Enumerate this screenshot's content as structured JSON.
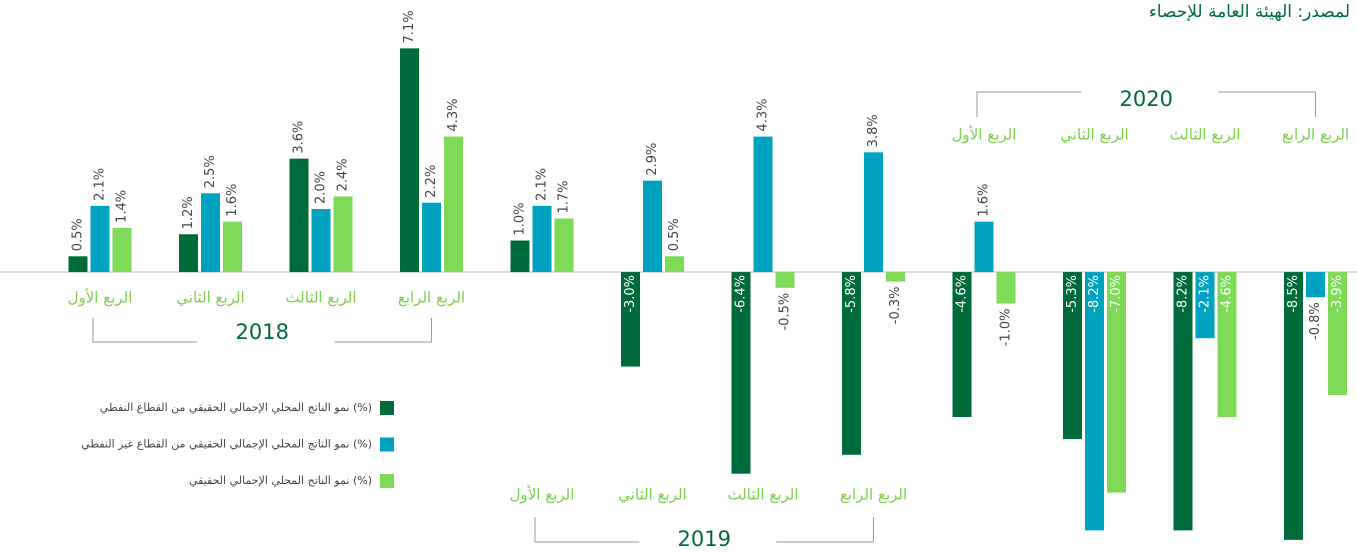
{
  "chart_data": {
    "type": "bar",
    "source": "لمصدر: الهيئة العامة للإحصاء",
    "categories": [
      "الربع الأول",
      "الربع الثاني",
      "الربع الثالث",
      "الربع الرابع",
      "الربع الأول",
      "الربع الثاني",
      "الربع الثالث",
      "الربع الرابع",
      "الربع الأول",
      "الربع الثاني",
      "الربع الثالث",
      "الربع الرابع"
    ],
    "years": [
      "2018",
      "2019",
      "2020"
    ],
    "ylim": [
      -8.6,
      8
    ],
    "series": [
      {
        "name": "نمو الناتج المحلي الإجمالي الحقيقي من القطاع النفطي (%)",
        "color": "#006b3a",
        "values": [
          0.5,
          1.2,
          3.6,
          7.1,
          1.0,
          -3.0,
          -6.4,
          -5.8,
          -4.6,
          -5.3,
          -8.2,
          -8.5
        ],
        "value_labels": [
          "0.5%",
          "1.2%",
          "3.6%",
          "7.1%",
          "1.0%",
          "-3.0%",
          "-6.4%",
          "-5.8%",
          "-4.6%",
          "-5.3%",
          "-8.2%",
          "-8.5%"
        ]
      },
      {
        "name": "نمو الناتج المحلي الإجمالي الحقيقي من القطاع غير النفطي (%)",
        "color": "#00a3bf",
        "values": [
          2.1,
          2.5,
          2.0,
          2.2,
          2.1,
          2.9,
          4.3,
          3.8,
          1.6,
          -8.2,
          -2.1,
          -0.8
        ],
        "value_labels": [
          "2.1%",
          "2.5%",
          "2.0%",
          "2.2%",
          "2.1%",
          "2.9%",
          "4.3%",
          "3.8%",
          "1.6%",
          "-8.2%",
          "-2.1%",
          "-0.8%"
        ]
      },
      {
        "name": "نمو الناتج المحلي الإجمالي الحقيقي (%)",
        "color": "#7ed957",
        "values": [
          1.4,
          1.6,
          2.4,
          4.3,
          1.7,
          0.5,
          -0.5,
          -0.3,
          -1.0,
          -7.0,
          -4.6,
          -3.9
        ],
        "value_labels": [
          "1.4%",
          "1.6%",
          "2.4%",
          "4.3%",
          "1.7%",
          "0.5%",
          "-0.5%",
          "-0.3%",
          "-1.0%",
          "-7.0%",
          "-4.6%",
          "-3.9%"
        ]
      }
    ]
  }
}
